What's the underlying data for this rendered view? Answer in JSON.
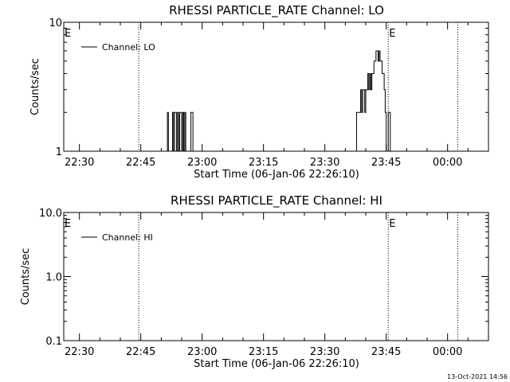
{
  "footer": {
    "timestamp": "13-Oct-2021 14:56"
  },
  "chart_data": [
    {
      "type": "line",
      "title": "RHESSI PARTICLE_RATE Channel: LO",
      "xlabel": "Start Time (06-Jan-06 22:26:10)",
      "ylabel": "Counts/sec",
      "yscale": "log",
      "ylim": [
        1,
        10
      ],
      "yticks": [
        1,
        10
      ],
      "ytick_labels": [
        "1",
        "10"
      ],
      "xlim": [
        "22:26:10",
        "00:10:00"
      ],
      "xticks": [
        "22:30",
        "22:45",
        "23:00",
        "23:15",
        "23:30",
        "23:45",
        "00:00"
      ],
      "event_lines": [
        "22:44:30",
        "23:45:30",
        "00:02:30"
      ],
      "event_labels": [
        {
          "text": "E",
          "x": "22:26:10"
        },
        {
          "text": "E",
          "x": "23:45:30"
        }
      ],
      "legend": {
        "position": "top-left",
        "entries": [
          "Channel: LO"
        ]
      },
      "series": [
        {
          "name": "Channel: LO",
          "x": [
            "22:51:00",
            "22:51:15",
            "22:51:30",
            "22:51:45",
            "22:52:00",
            "22:52:15",
            "22:52:30",
            "22:52:45",
            "22:53:00",
            "22:53:15",
            "22:53:30",
            "22:53:45",
            "22:54:00",
            "22:54:15",
            "22:54:30",
            "22:54:45",
            "22:55:00",
            "22:55:15",
            "22:55:30",
            "22:55:45",
            "22:56:00",
            "22:56:15",
            "22:56:30",
            "22:56:45",
            "22:57:00",
            "22:57:15",
            "22:57:30",
            "22:57:45",
            "22:58:00",
            "22:58:15",
            "22:58:30",
            "22:58:45",
            "22:59:00",
            "22:59:15",
            "22:59:30",
            "22:59:45",
            "23:00:00",
            "23:00:15",
            "23:00:30",
            "23:37:30",
            "23:37:45",
            "23:38:00",
            "23:38:15",
            "23:38:30",
            "23:38:45",
            "23:39:00",
            "23:39:15",
            "23:39:30",
            "23:39:45",
            "23:40:00",
            "23:40:15",
            "23:40:30",
            "23:40:45",
            "23:41:00",
            "23:41:15",
            "23:41:30",
            "23:41:45",
            "23:42:00",
            "23:42:15",
            "23:42:30",
            "23:42:45",
            "23:43:00",
            "23:43:15",
            "23:43:30",
            "23:43:45",
            "23:44:00",
            "23:44:15",
            "23:44:30",
            "23:44:45",
            "23:45:00",
            "23:45:15",
            "23:45:30",
            "23:45:45",
            "23:46:00",
            "23:46:15",
            "23:46:30"
          ],
          "values": [
            1,
            1,
            2,
            1,
            1,
            1,
            1,
            2,
            1,
            2,
            2,
            1,
            2,
            1,
            2,
            2,
            1,
            2,
            1,
            2,
            1,
            1,
            1,
            1,
            1,
            2,
            2,
            1,
            1,
            1,
            1,
            1,
            1,
            1,
            1,
            1,
            1,
            1,
            1,
            1,
            2,
            2,
            2,
            2,
            3,
            2,
            3,
            3,
            2,
            3,
            3,
            4,
            3,
            4,
            3,
            4,
            4,
            5,
            5,
            6,
            6,
            5,
            6,
            5,
            5,
            4,
            4,
            3,
            2,
            1,
            1,
            2,
            2,
            1,
            1,
            1
          ]
        }
      ]
    },
    {
      "type": "line",
      "title": "RHESSI PARTICLE_RATE Channel: HI",
      "xlabel": "Start Time (06-Jan-06 22:26:10)",
      "ylabel": "Counts/sec",
      "yscale": "log",
      "ylim": [
        0.1,
        10
      ],
      "yticks": [
        0.1,
        1,
        10
      ],
      "ytick_labels": [
        "0.1",
        "1.0",
        "10.0"
      ],
      "xlim": [
        "22:26:10",
        "00:10:00"
      ],
      "xticks": [
        "22:30",
        "22:45",
        "23:00",
        "23:15",
        "23:30",
        "23:45",
        "00:00"
      ],
      "event_lines": [
        "22:44:30",
        "23:45:30",
        "00:02:30"
      ],
      "event_labels": [
        {
          "text": "E",
          "x": "22:26:10"
        },
        {
          "text": "E",
          "x": "23:45:30"
        }
      ],
      "legend": {
        "position": "top-left",
        "entries": [
          "Channel: HI"
        ]
      },
      "series": [
        {
          "name": "Channel: HI",
          "x": [],
          "values": []
        }
      ]
    }
  ]
}
